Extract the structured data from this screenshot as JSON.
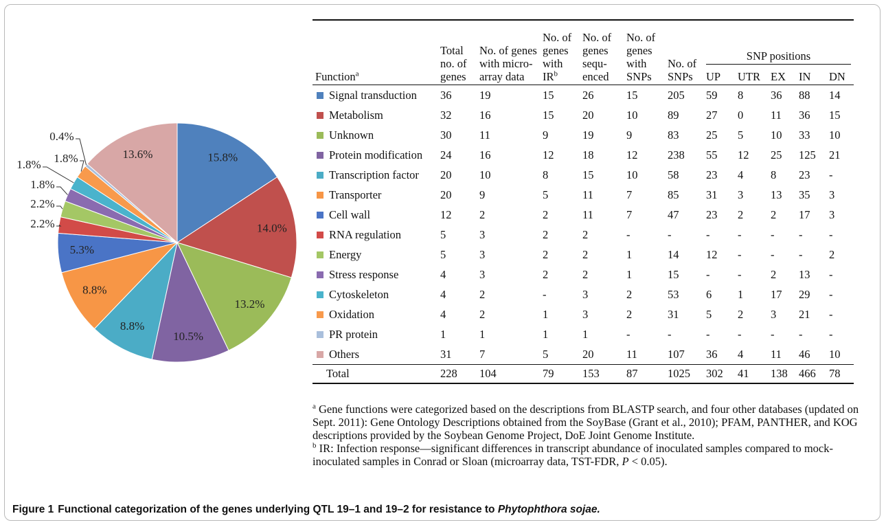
{
  "chart_data": {
    "type": "pie",
    "categories": [
      "Signal transduction",
      "Metabolism",
      "Unknown",
      "Protein modification",
      "Transcription factor",
      "Transporter",
      "Cell wall",
      "RNA regulation",
      "Energy",
      "Stress response",
      "Cytoskeleton",
      "Oxidation",
      "PR protein",
      "Others"
    ],
    "values": [
      15.8,
      14,
      13.2,
      10.5,
      8.8,
      8.8,
      5.3,
      2.2,
      2.2,
      1.8,
      1.8,
      1.8,
      0.4,
      13.6
    ],
    "value_labels": [
      "15.8%",
      "14.0%",
      "13.2%",
      "10.5%",
      "8.8%",
      "8.8%",
      "5.3%",
      "2.2%",
      "2.2%",
      "1.8%",
      "1.8%",
      "1.8%",
      "0.4%",
      "13.6%"
    ],
    "colors": [
      "#4f81bd",
      "#c0504d",
      "#9bbb59",
      "#8064a2",
      "#4bacc6",
      "#f79646",
      "#4a74c6",
      "#d24b48",
      "#a4c765",
      "#8a6bb0",
      "#4ab3cc",
      "#f89a4c",
      "#a9bfdc",
      "#d8a7a6"
    ]
  },
  "table": {
    "columns": [
      {
        "text": "Function",
        "sup": "a"
      },
      {
        "text": "Total no. of genes"
      },
      {
        "text": "No. of genes with micro-array data"
      },
      {
        "text": "No. of genes with IR",
        "sup": "b"
      },
      {
        "text": "No. of genes sequ-enced"
      },
      {
        "text": "No. of genes with SNPs"
      },
      {
        "text": "No. of SNPs"
      }
    ],
    "group_header": "SNP positions",
    "group_columns": [
      "UP",
      "UTR",
      "EX",
      "IN",
      "DN"
    ],
    "rows": [
      [
        36,
        19,
        15,
        26,
        15,
        205,
        59,
        8,
        36,
        88,
        14
      ],
      [
        32,
        16,
        15,
        20,
        10,
        89,
        27,
        0,
        11,
        36,
        15
      ],
      [
        30,
        11,
        9,
        19,
        9,
        83,
        25,
        5,
        10,
        33,
        10
      ],
      [
        24,
        16,
        12,
        18,
        12,
        238,
        55,
        12,
        25,
        125,
        21
      ],
      [
        20,
        10,
        8,
        15,
        10,
        58,
        23,
        4,
        8,
        23,
        "-"
      ],
      [
        20,
        9,
        5,
        11,
        7,
        85,
        31,
        3,
        13,
        35,
        3
      ],
      [
        12,
        2,
        2,
        11,
        7,
        47,
        23,
        2,
        2,
        17,
        3
      ],
      [
        5,
        3,
        2,
        2,
        "-",
        "-",
        "-",
        "-",
        "-",
        "-",
        "-"
      ],
      [
        5,
        3,
        2,
        2,
        1,
        14,
        12,
        "-",
        "-",
        "-",
        2
      ],
      [
        4,
        3,
        2,
        2,
        1,
        15,
        "-",
        "-",
        2,
        13,
        "-"
      ],
      [
        4,
        2,
        "-",
        3,
        2,
        53,
        6,
        1,
        17,
        29,
        "-"
      ],
      [
        4,
        2,
        1,
        3,
        2,
        31,
        5,
        2,
        3,
        21,
        "-"
      ],
      [
        1,
        1,
        1,
        1,
        "-",
        "-",
        "-",
        "-",
        "-",
        "-",
        "-"
      ],
      [
        31,
        7,
        5,
        20,
        11,
        107,
        36,
        4,
        11,
        46,
        10
      ]
    ],
    "total_label": "Total",
    "total": [
      228,
      104,
      79,
      153,
      87,
      1025,
      302,
      41,
      138,
      466,
      78
    ]
  },
  "footnotes": [
    {
      "mark": "a",
      "parts": [
        {
          "text": "Gene functions were categorized based on the descriptions from BLASTP search, and four other databases (updated on Sept. 2011): Gene Ontology Descriptions obtained from the SoyBase (Grant et al., 2010); PFAM, PANTHER, and KOG descriptions provided by the Soybean Genome Project, DoE Joint Genome Institute."
        }
      ]
    },
    {
      "mark": "b",
      "parts": [
        {
          "text": "IR: Infection response—significant differences in transcript abundance of inoculated samples compared to mock-inoculated samples in Conrad or Sloan (microarray data, TST-FDR, "
        },
        {
          "text": "P",
          "italic": true
        },
        {
          "text": " < 0.05)."
        }
      ]
    }
  ],
  "caption": {
    "label": "Figure 1",
    "parts": [
      {
        "text": "Functional categorization of the genes underlying QTL 19–1 and 19–2 for resistance to "
      },
      {
        "text": "Phytophthora sojae.",
        "italic": true
      }
    ]
  }
}
